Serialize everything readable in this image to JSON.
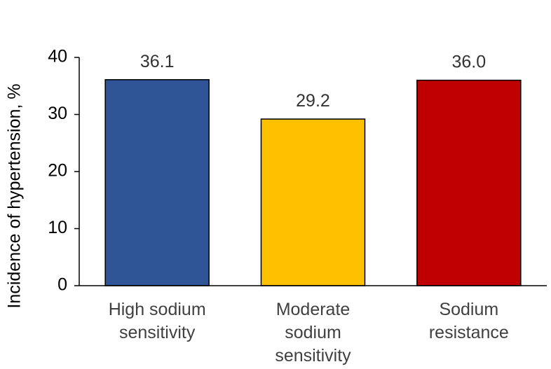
{
  "chart_data": {
    "type": "bar",
    "categories": [
      [
        "High sodium",
        "sensitivity"
      ],
      [
        "Moderate",
        "sodium",
        "sensitivity"
      ],
      [
        "Sodium",
        "resistance"
      ]
    ],
    "values": [
      36.1,
      29.2,
      36.0
    ],
    "value_labels": [
      "36.1",
      "29.2",
      "36.0"
    ],
    "colors": [
      "#2f5597",
      "#ffc000",
      "#c00000"
    ],
    "bar_outline": "#000000",
    "title": "",
    "xlabel": "",
    "ylabel": "Incidence of hypertension, %",
    "ylim": [
      0,
      40
    ],
    "yticks": [
      0,
      10,
      20,
      30,
      40
    ],
    "grid": false,
    "legend": "none"
  }
}
